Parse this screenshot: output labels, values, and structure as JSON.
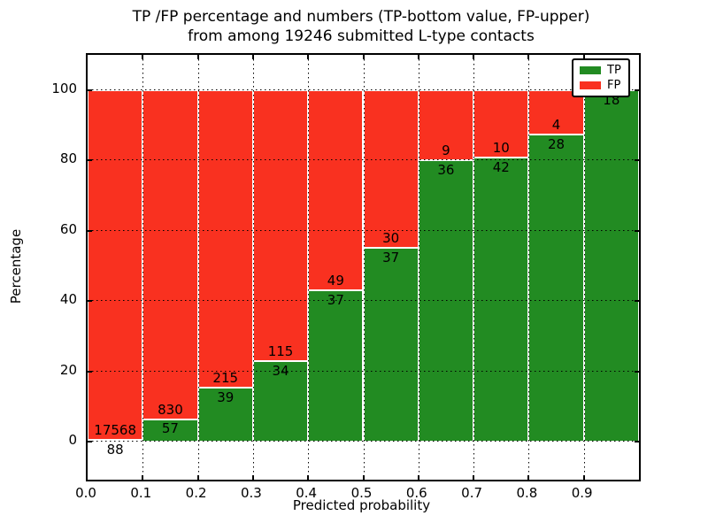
{
  "title": {
    "line1": "TP /FP percentage and numbers (TP-bottom value, FP-upper)",
    "line2": "from among 19246 submitted L-type contacts"
  },
  "axes": {
    "ylabel": "Percentage",
    "xlabel": "Predicted probability",
    "yticks": [
      0,
      20,
      40,
      60,
      80,
      100
    ],
    "xticks": [
      "0.0",
      "0.1",
      "0.2",
      "0.3",
      "0.4",
      "0.5",
      "0.6",
      "0.7",
      "0.8",
      "0.9"
    ],
    "grid": "dotted black on both axes"
  },
  "legend": {
    "position": "upper right",
    "items": [
      {
        "label": "TP",
        "color": "#228b22"
      },
      {
        "label": "FP",
        "color": "#f93120"
      }
    ]
  },
  "colors": {
    "tp": "#228b22",
    "fp": "#f93120",
    "bar_edge": "#ffffff",
    "text": "#000000"
  },
  "chart_data": {
    "type": "bar",
    "stacked": true,
    "normalized_to": 100,
    "title": "TP /FP percentage and numbers (TP-bottom value, FP-upper) from among 19246 submitted L-type contacts",
    "xlabel": "Predicted probability",
    "ylabel": "Percentage",
    "ylim": [
      -10.8,
      110.1
    ],
    "xlim": [
      0.0,
      1.0
    ],
    "total_contacts": 19246,
    "categories": [
      "0.0-0.1",
      "0.1-0.2",
      "0.2-0.3",
      "0.3-0.4",
      "0.4-0.5",
      "0.5-0.6",
      "0.6-0.7",
      "0.7-0.8",
      "0.8-0.9",
      "0.9-1.0"
    ],
    "series": [
      {
        "name": "TP",
        "values": [
          88,
          57,
          39,
          34,
          37,
          37,
          36,
          42,
          28,
          18
        ]
      },
      {
        "name": "FP",
        "values": [
          17568,
          830,
          215,
          115,
          49,
          30,
          9,
          10,
          4,
          0
        ]
      }
    ],
    "bar_labels": [
      {
        "tp": "88",
        "fp": "17568"
      },
      {
        "tp": "57",
        "fp": "830"
      },
      {
        "tp": "39",
        "fp": "215"
      },
      {
        "tp": "34",
        "fp": "115"
      },
      {
        "tp": "37",
        "fp": "49"
      },
      {
        "tp": "37",
        "fp": "30"
      },
      {
        "tp": "36",
        "fp": "9"
      },
      {
        "tp": "42",
        "fp": "10"
      },
      {
        "tp": "28",
        "fp": "4"
      },
      {
        "tp": "18",
        "fp": null
      }
    ]
  }
}
